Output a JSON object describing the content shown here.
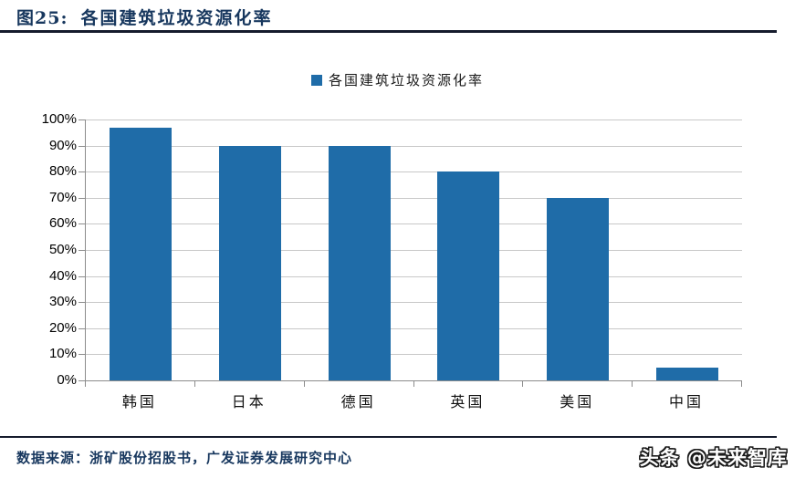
{
  "header": {
    "title_prefix": "图25:",
    "title": "各国建筑垃圾资源化率"
  },
  "legend": {
    "label": "各国建筑垃圾资源化率"
  },
  "footer": {
    "source": "数据来源：浙矿股份招股书，广发证券发展研究中心",
    "watermark": "头条 @未来智库"
  },
  "colors": {
    "bar": "#1F6CA8",
    "title_text": "#17375E",
    "gridline": "#C8C8C8",
    "axis": "#8C8C8C",
    "rule": "#151B2C",
    "watermark_text": "#FFFFFF"
  },
  "chart_data": {
    "type": "bar",
    "title": "各国建筑垃圾资源化率",
    "categories": [
      "韩国",
      "日本",
      "德国",
      "英国",
      "美国",
      "中国"
    ],
    "values": [
      97,
      90,
      90,
      80,
      70,
      5
    ],
    "xlabel": "",
    "ylabel": "",
    "ylim": [
      0,
      100
    ],
    "ytick_step": 10,
    "ytick_suffix": "%",
    "grid": true,
    "legend_position": "top-center"
  }
}
